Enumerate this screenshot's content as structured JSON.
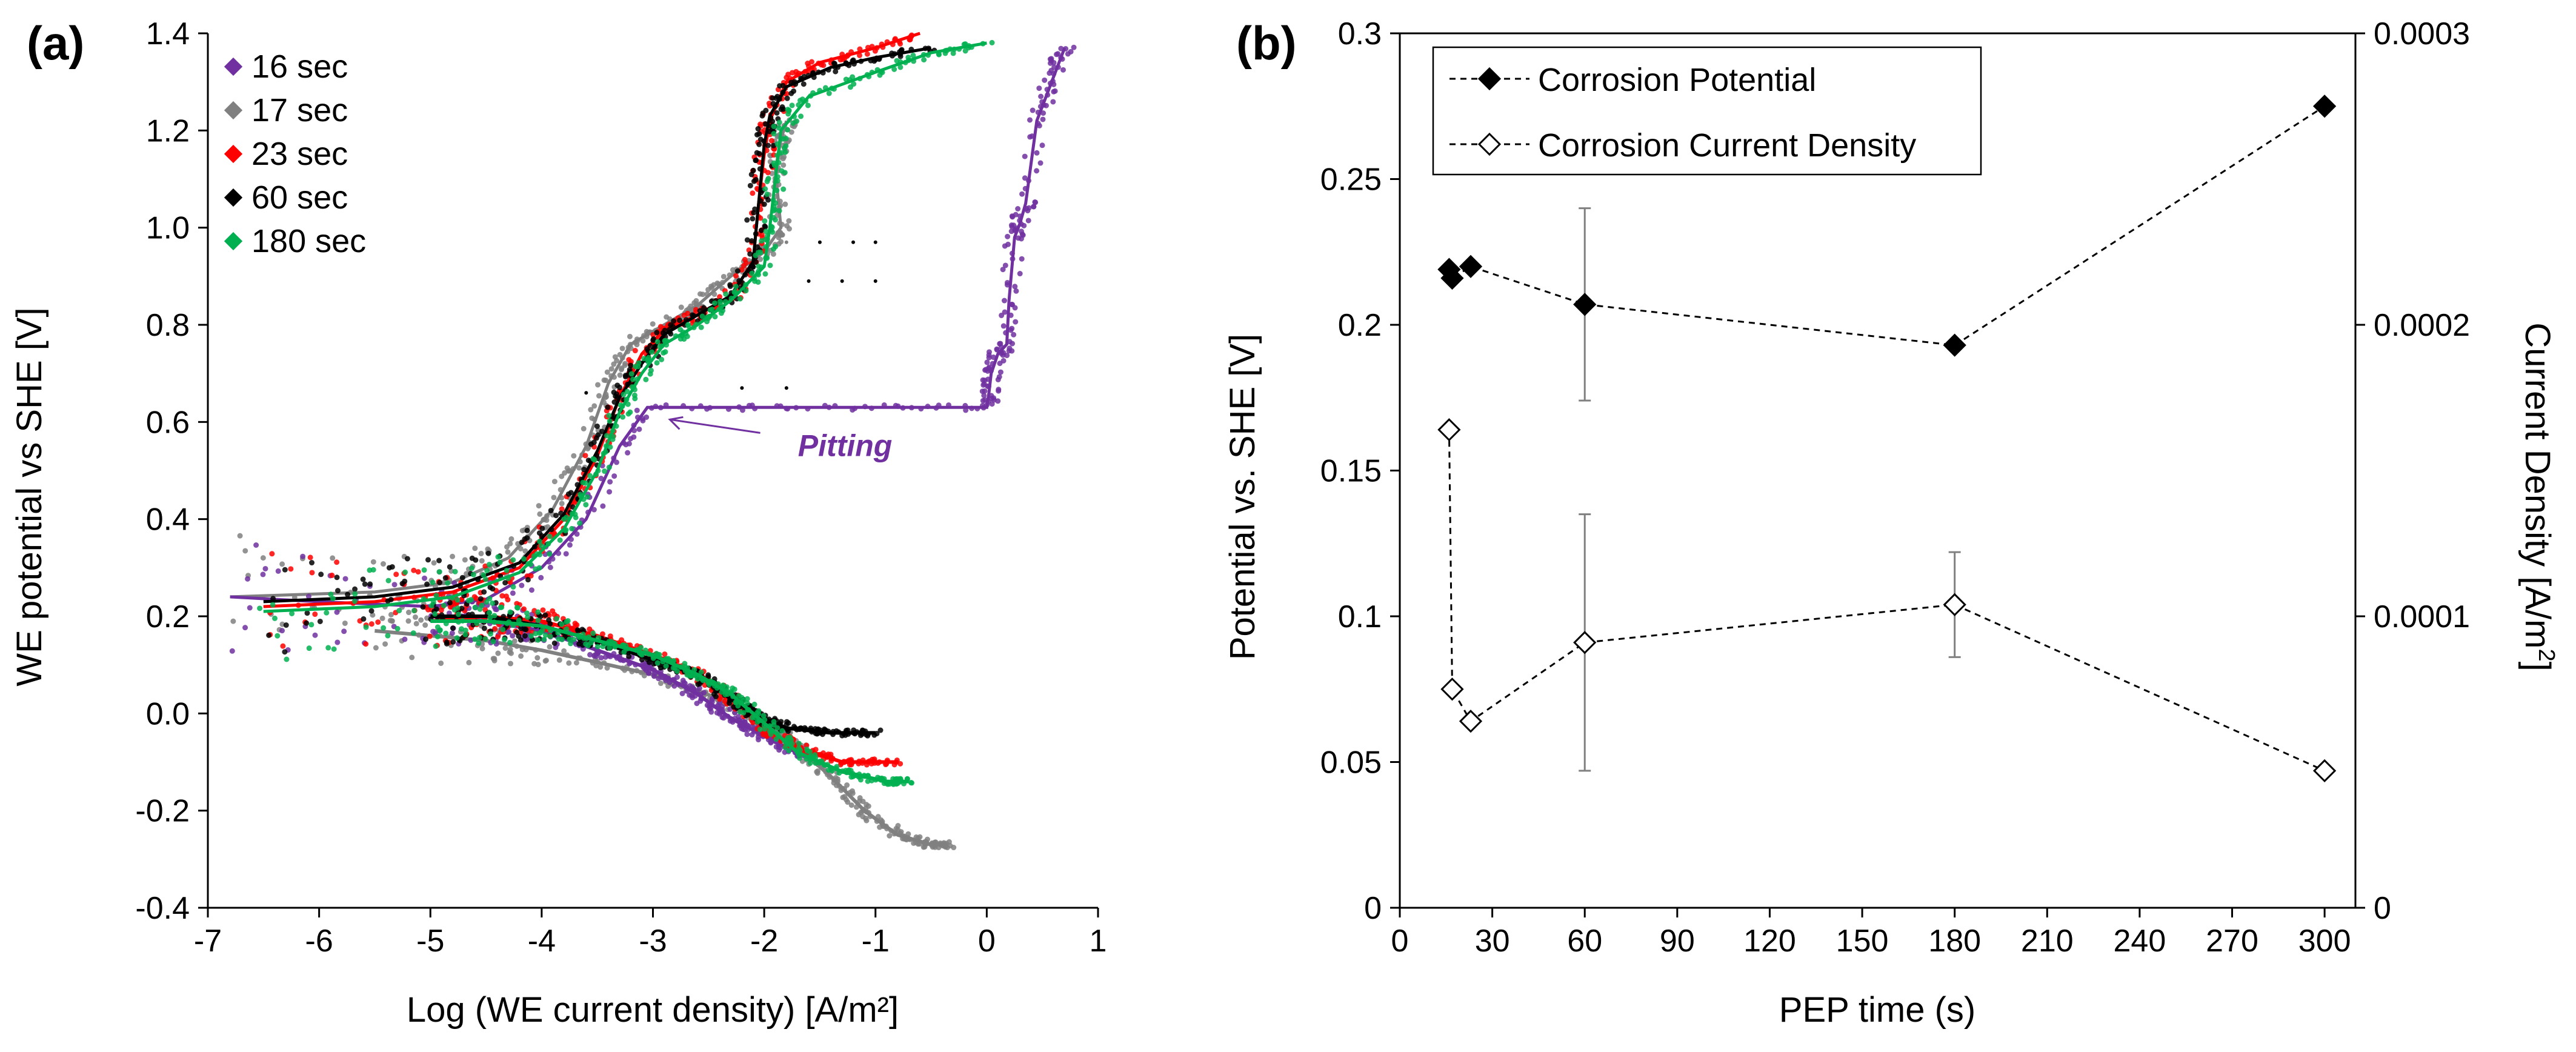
{
  "figure": {
    "panels": [
      {
        "label": "(a)"
      },
      {
        "label": "(b)"
      }
    ]
  },
  "chart_data": [
    {
      "panel": "(a)",
      "type": "scatter",
      "title": "",
      "xlabel": "Log (WE current density) [A/m²]",
      "ylabel": "WE potential vs SHE [V]",
      "xlim": [
        -7,
        1
      ],
      "ylim": [
        -0.4,
        1.4
      ],
      "xticks": [
        "-7",
        "-6",
        "-5",
        "-4",
        "-3",
        "-2",
        "-1",
        "0",
        "1"
      ],
      "yticks": [
        "-0.4",
        "-0.2",
        "0.0",
        "0.2",
        "0.4",
        "0.6",
        "0.8",
        "1.0",
        "1.2",
        "1.4"
      ],
      "grid": false,
      "legend_position": "top-left",
      "annotation": {
        "text": "Pitting",
        "x": -1.6,
        "y": 0.58,
        "arrow_to": [
          -1.65,
          0.625
        ],
        "color": "#7030a0"
      },
      "series": [
        {
          "name": "16 sec",
          "color": "#7030a0",
          "anodic": [
            [
              -6.8,
              0.24
            ],
            [
              -6.0,
              0.23
            ],
            [
              -5.0,
              0.22
            ],
            [
              -4.5,
              0.235
            ],
            [
              -4.0,
              0.3
            ],
            [
              -3.6,
              0.4
            ],
            [
              -3.3,
              0.55
            ],
            [
              -3.05,
              0.63
            ],
            [
              -2.0,
              0.63
            ],
            [
              -1.0,
              0.63
            ],
            [
              0.0,
              0.63
            ],
            [
              0.02,
              0.66
            ],
            [
              0.04,
              0.7
            ],
            [
              0.1,
              0.74
            ],
            [
              0.18,
              0.76
            ],
            [
              0.2,
              0.85
            ],
            [
              0.25,
              0.98
            ],
            [
              0.3,
              1.01
            ],
            [
              0.35,
              1.05
            ],
            [
              0.45,
              1.22
            ],
            [
              0.55,
              1.28
            ],
            [
              0.65,
              1.34
            ],
            [
              0.7,
              1.37
            ]
          ],
          "cathodic": [
            [
              -5.0,
              0.2
            ],
            [
              -4.5,
              0.19
            ],
            [
              -4.0,
              0.17
            ],
            [
              -3.5,
              0.13
            ],
            [
              -3.0,
              0.09
            ],
            [
              -2.6,
              0.04
            ],
            [
              -2.3,
              -0.01
            ],
            [
              -2.05,
              -0.04
            ],
            [
              -1.8,
              -0.07
            ],
            [
              -1.6,
              -0.09
            ]
          ]
        },
        {
          "name": "17 sec",
          "color": "#808080",
          "anodic": [
            [
              -6.8,
              0.24
            ],
            [
              -5.5,
              0.25
            ],
            [
              -4.8,
              0.27
            ],
            [
              -4.3,
              0.32
            ],
            [
              -3.9,
              0.42
            ],
            [
              -3.6,
              0.55
            ],
            [
              -3.4,
              0.68
            ],
            [
              -3.2,
              0.76
            ],
            [
              -2.9,
              0.8
            ],
            [
              -2.6,
              0.84
            ],
            [
              -2.3,
              0.9
            ],
            [
              -2.0,
              0.95
            ],
            [
              -1.85,
              1.0
            ],
            [
              -1.9,
              1.12
            ],
            [
              -1.85,
              1.18
            ],
            [
              -1.8,
              1.22
            ]
          ],
          "cathodic": [
            [
              -5.5,
              0.17
            ],
            [
              -4.5,
              0.15
            ],
            [
              -4.0,
              0.13
            ],
            [
              -3.0,
              0.08
            ],
            [
              -2.4,
              0.03
            ],
            [
              -2.0,
              -0.02
            ],
            [
              -1.7,
              -0.07
            ],
            [
              -1.4,
              -0.13
            ],
            [
              -1.1,
              -0.2
            ],
            [
              -0.8,
              -0.25
            ],
            [
              -0.5,
              -0.27
            ],
            [
              -0.35,
              -0.27
            ]
          ]
        },
        {
          "name": "23 sec",
          "color": "#ff0000",
          "anodic": [
            [
              -6.5,
              0.22
            ],
            [
              -5.5,
              0.23
            ],
            [
              -4.8,
              0.25
            ],
            [
              -4.2,
              0.3
            ],
            [
              -3.8,
              0.4
            ],
            [
              -3.5,
              0.53
            ],
            [
              -3.3,
              0.65
            ],
            [
              -3.1,
              0.74
            ],
            [
              -2.9,
              0.79
            ],
            [
              -2.6,
              0.82
            ],
            [
              -2.3,
              0.86
            ],
            [
              -2.1,
              0.93
            ],
            [
              -2.05,
              1.05
            ],
            [
              -2.0,
              1.15
            ],
            [
              -1.95,
              1.22
            ],
            [
              -1.8,
              1.3
            ],
            [
              -1.5,
              1.34
            ],
            [
              -1.0,
              1.37
            ],
            [
              -0.6,
              1.4
            ]
          ],
          "cathodic": [
            [
              -5.0,
              0.19
            ],
            [
              -4.5,
              0.2
            ],
            [
              -4.0,
              0.19
            ],
            [
              -3.5,
              0.16
            ],
            [
              -3.0,
              0.12
            ],
            [
              -2.6,
              0.08
            ],
            [
              -2.3,
              0.03
            ],
            [
              -2.0,
              -0.03
            ],
            [
              -1.7,
              -0.07
            ],
            [
              -1.3,
              -0.1
            ],
            [
              -0.8,
              -0.1
            ]
          ]
        },
        {
          "name": "60 sec",
          "color": "#000000",
          "anodic": [
            [
              -6.5,
              0.23
            ],
            [
              -5.5,
              0.24
            ],
            [
              -4.8,
              0.26
            ],
            [
              -4.2,
              0.31
            ],
            [
              -3.8,
              0.41
            ],
            [
              -3.5,
              0.54
            ],
            [
              -3.3,
              0.65
            ],
            [
              -3.1,
              0.72
            ],
            [
              -2.9,
              0.78
            ],
            [
              -2.6,
              0.82
            ],
            [
              -2.3,
              0.86
            ],
            [
              -2.1,
              0.93
            ],
            [
              -2.05,
              1.05
            ],
            [
              -2.0,
              1.17
            ],
            [
              -1.95,
              1.23
            ],
            [
              -1.8,
              1.29
            ],
            [
              -1.4,
              1.33
            ],
            [
              -1.0,
              1.35
            ],
            [
              -0.5,
              1.37
            ]
          ],
          "cathodic": [
            [
              -5.0,
              0.2
            ],
            [
              -4.5,
              0.2
            ],
            [
              -4.0,
              0.18
            ],
            [
              -3.5,
              0.15
            ],
            [
              -3.0,
              0.11
            ],
            [
              -2.6,
              0.08
            ],
            [
              -2.3,
              0.03
            ],
            [
              -2.1,
              0.0
            ],
            [
              -1.8,
              -0.03
            ],
            [
              -1.4,
              -0.04
            ],
            [
              -1.0,
              -0.04
            ]
          ]
        },
        {
          "name": "180 sec",
          "color": "#00b050",
          "anodic": [
            [
              -6.5,
              0.21
            ],
            [
              -5.5,
              0.22
            ],
            [
              -4.8,
              0.24
            ],
            [
              -4.2,
              0.29
            ],
            [
              -3.8,
              0.38
            ],
            [
              -3.5,
              0.5
            ],
            [
              -3.3,
              0.62
            ],
            [
              -3.1,
              0.7
            ],
            [
              -2.9,
              0.76
            ],
            [
              -2.6,
              0.8
            ],
            [
              -2.3,
              0.85
            ],
            [
              -2.0,
              0.92
            ],
            [
              -1.95,
              1.0
            ],
            [
              -1.9,
              1.1
            ],
            [
              -1.85,
              1.2
            ],
            [
              -1.6,
              1.27
            ],
            [
              -1.0,
              1.32
            ],
            [
              -0.5,
              1.36
            ],
            [
              0.0,
              1.38
            ]
          ],
          "cathodic": [
            [
              -5.0,
              0.19
            ],
            [
              -4.5,
              0.19
            ],
            [
              -4.0,
              0.18
            ],
            [
              -3.5,
              0.15
            ],
            [
              -3.0,
              0.12
            ],
            [
              -2.6,
              0.08
            ],
            [
              -2.3,
              0.04
            ],
            [
              -2.0,
              -0.02
            ],
            [
              -1.7,
              -0.08
            ],
            [
              -1.3,
              -0.12
            ],
            [
              -0.9,
              -0.14
            ],
            [
              -0.7,
              -0.14
            ]
          ]
        }
      ]
    },
    {
      "panel": "(b)",
      "type": "scatter",
      "title": "",
      "xlabel": "PEP time (s)",
      "ylabel": "Potential vs. SHE [V]",
      "y2label": "Current Density [A/m",
      "y2label_sup": "2",
      "y2label_end": "]",
      "xlim": [
        0,
        310
      ],
      "ylim": [
        0,
        0.3
      ],
      "y2lim": [
        0,
        0.0003
      ],
      "xticks": [
        "0",
        "30",
        "60",
        "90",
        "120",
        "150",
        "180",
        "210",
        "240",
        "270",
        "300"
      ],
      "yticks": [
        "0",
        "0.05",
        "0.1",
        "0.15",
        "0.2",
        "0.25",
        "0.3"
      ],
      "y2ticks": [
        "0",
        "0.0001",
        "0.0002",
        "0.0003"
      ],
      "grid": false,
      "legend_position": "top-left",
      "series": [
        {
          "name": "Corrosion Potential",
          "axis": "left",
          "marker": "filled-diamond",
          "line": "dashed",
          "x": [
            16,
            17,
            23,
            60,
            180,
            300
          ],
          "y": [
            0.219,
            0.216,
            0.22,
            0.207,
            0.193,
            0.275
          ],
          "err": [
            0,
            0,
            0,
            0.033,
            0,
            0
          ]
        },
        {
          "name": "Corrosion Current Density",
          "axis": "right",
          "marker": "open-diamond",
          "line": "dashed",
          "x": [
            16,
            17,
            23,
            60,
            180,
            300
          ],
          "y": [
            0.000164,
            7.5e-05,
            6.4e-05,
            9.1e-05,
            0.000104,
            4.7e-05
          ],
          "err": [
            0,
            0,
            0,
            4.4e-05,
            1.8e-05,
            0
          ]
        }
      ]
    }
  ]
}
